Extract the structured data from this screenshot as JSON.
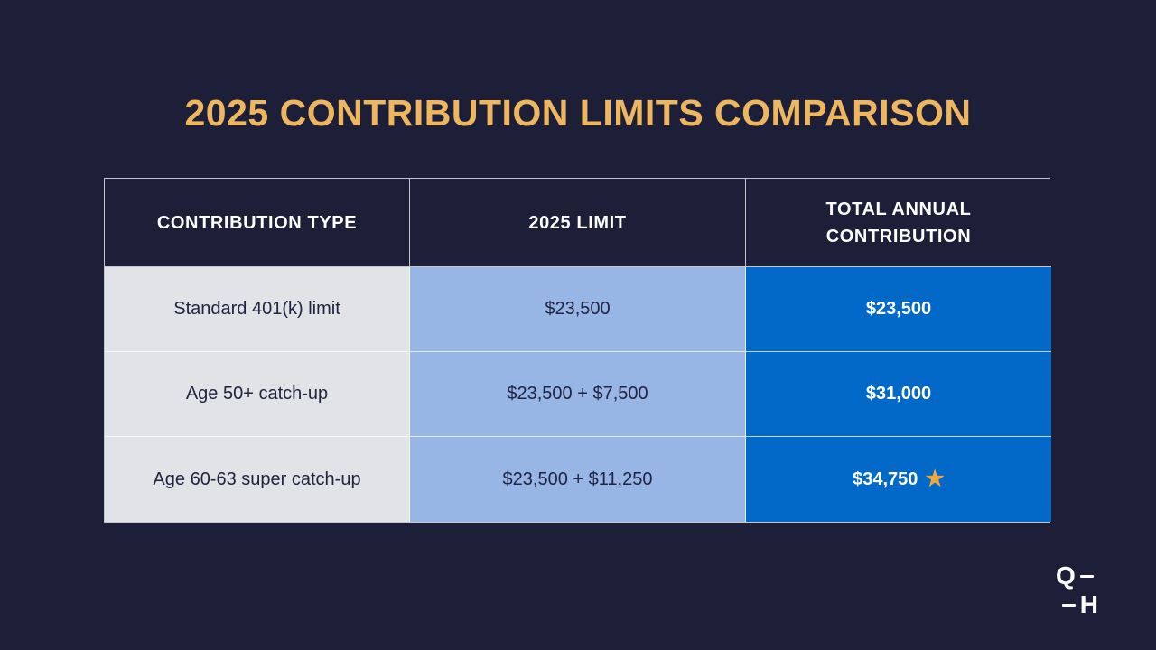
{
  "page": {
    "title": "2025 CONTRIBUTION LIMITS COMPARISON"
  },
  "table": {
    "headers": [
      "CONTRIBUTION TYPE",
      "2025 LIMIT",
      "TOTAL ANNUAL CONTRIBUTION"
    ],
    "rows": [
      {
        "contribution_type": "Standard 401(k) limit",
        "limit_2025": "$23,500",
        "total_annual": "$23,500"
      },
      {
        "contribution_type": "Age 50+ catch-up",
        "limit_2025": "$23,500 + $7,500",
        "total_annual": "$31,000"
      },
      {
        "contribution_type": "Age 60-63 super catch-up",
        "limit_2025": "$23,500 + $11,250",
        "total_annual": "$34,750",
        "star": "★"
      }
    ]
  },
  "logo": {
    "letter_top": "Q",
    "letter_bottom": "H"
  },
  "colors": {
    "background": "#1d1f38",
    "title_gold": "#eeb65f",
    "type_column_bg": "#e2e3e6",
    "limit_column_bg": "#97b5e5",
    "total_column_bg": "#0269c8",
    "star_gold": "#f0a73e",
    "dark_text": "#212342"
  }
}
